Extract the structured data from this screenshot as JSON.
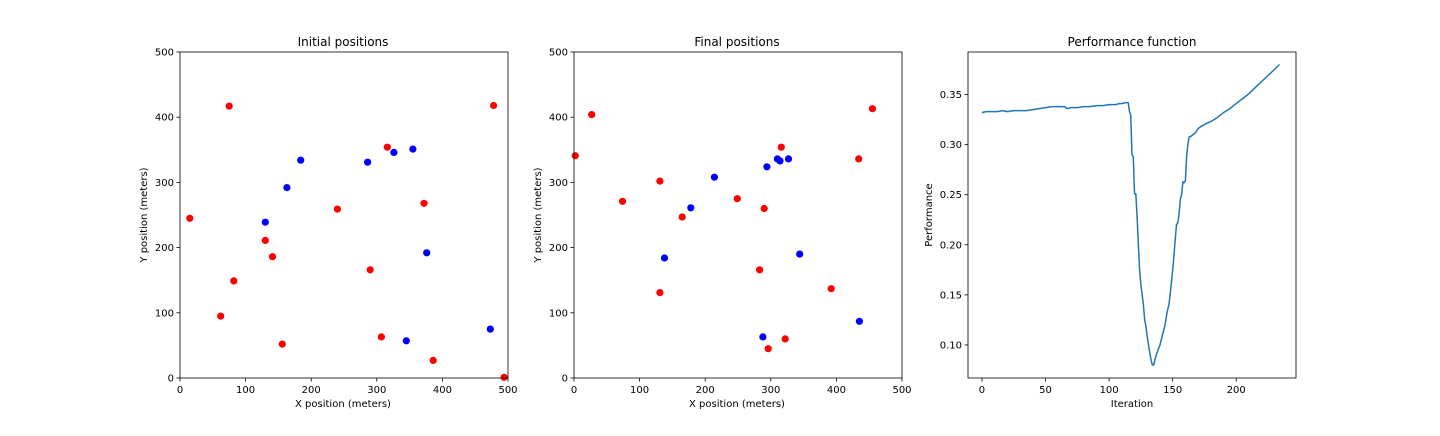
{
  "chart_data": [
    {
      "type": "scatter",
      "title": "Initial positions",
      "xlabel": "X position (meters)",
      "ylabel": "Y position (meters)",
      "xlim": [
        0,
        500
      ],
      "ylim": [
        0,
        500
      ],
      "xticks": [
        0,
        100,
        200,
        300,
        400,
        500
      ],
      "yticks": [
        0,
        100,
        200,
        300,
        400,
        500
      ],
      "grid": false,
      "colors": [
        "#ff0000",
        "#0000ff"
      ],
      "series": [
        {
          "color": "#ff0000",
          "points": [
            [
              15,
              245
            ],
            [
              75,
              417
            ],
            [
              82,
              149
            ],
            [
              62,
              95
            ],
            [
              130,
              211
            ],
            [
              141,
              186
            ],
            [
              156,
              52
            ],
            [
              240,
              259
            ],
            [
              290,
              166
            ],
            [
              307,
              63
            ],
            [
              316,
              354
            ],
            [
              372,
              268
            ],
            [
              386,
              27
            ],
            [
              478,
              418
            ],
            [
              494,
              1
            ]
          ]
        },
        {
          "color": "#0000ff",
          "points": [
            [
              130,
              239
            ],
            [
              163,
              292
            ],
            [
              184,
              334
            ],
            [
              286,
              331
            ],
            [
              326,
              346
            ],
            [
              355,
              351
            ],
            [
              376,
              192
            ],
            [
              345,
              57
            ],
            [
              473,
              75
            ]
          ]
        }
      ]
    },
    {
      "type": "scatter",
      "title": "Final positions",
      "xlabel": "X position (meters)",
      "ylabel": "Y position (meters)",
      "xlim": [
        0,
        500
      ],
      "ylim": [
        0,
        500
      ],
      "xticks": [
        0,
        100,
        200,
        300,
        400,
        500
      ],
      "yticks": [
        0,
        100,
        200,
        300,
        400,
        500
      ],
      "grid": false,
      "colors": [
        "#ff0000",
        "#0000ff"
      ],
      "series": [
        {
          "color": "#ff0000",
          "points": [
            [
              2,
              341
            ],
            [
              27,
              404
            ],
            [
              74,
              271
            ],
            [
              131,
              302
            ],
            [
              131,
              131
            ],
            [
              165,
              247
            ],
            [
              249,
              275
            ],
            [
              283,
              166
            ],
            [
              290,
              260
            ],
            [
              296,
              45
            ],
            [
              316,
              354
            ],
            [
              322,
              60
            ],
            [
              392,
              137
            ],
            [
              434,
              336
            ],
            [
              455,
              413
            ]
          ]
        },
        {
          "color": "#0000ff",
          "points": [
            [
              138,
              184
            ],
            [
              178,
              261
            ],
            [
              214,
              308
            ],
            [
              294,
              324
            ],
            [
              310,
              336
            ],
            [
              314,
              333
            ],
            [
              327,
              336
            ],
            [
              344,
              190
            ],
            [
              288,
              63
            ],
            [
              435,
              87
            ]
          ]
        }
      ]
    },
    {
      "type": "line",
      "title": "Performance function",
      "xlabel": "Iteration",
      "ylabel": "Performance",
      "xlim": [
        -11,
        247
      ],
      "ylim": [
        0.067,
        0.3925
      ],
      "xticks": [
        0,
        50,
        100,
        150,
        200
      ],
      "yticks": [
        0.1,
        0.15,
        0.2,
        0.25,
        0.3,
        0.35
      ],
      "grid": false,
      "color": "#1f77b4",
      "series": [
        {
          "x": [
            0,
            3,
            8,
            12,
            16,
            20,
            25,
            30,
            35,
            40,
            45,
            50,
            55,
            60,
            65,
            67,
            70,
            75,
            80,
            85,
            90,
            95,
            100,
            105,
            108,
            110,
            113,
            115,
            116,
            117,
            118,
            119,
            120,
            121,
            122,
            123,
            124,
            125,
            126,
            127,
            128,
            129,
            130,
            131,
            132,
            133,
            134,
            135,
            136,
            137,
            138,
            139,
            140,
            141,
            142,
            143,
            144,
            145,
            146,
            147,
            148,
            149,
            150,
            151,
            152,
            153,
            154,
            155,
            156,
            157,
            158,
            159,
            160,
            161,
            162,
            163,
            164,
            165,
            166,
            167,
            168,
            169,
            170,
            172,
            175,
            178,
            180,
            185,
            190,
            195,
            200,
            205,
            210,
            215,
            220,
            225,
            230,
            234
          ],
          "y": [
            0.332,
            0.333,
            0.333,
            0.333,
            0.334,
            0.333,
            0.334,
            0.334,
            0.334,
            0.335,
            0.336,
            0.337,
            0.338,
            0.338,
            0.338,
            0.336,
            0.337,
            0.337,
            0.338,
            0.338,
            0.339,
            0.339,
            0.34,
            0.34,
            0.341,
            0.341,
            0.342,
            0.342,
            0.333,
            0.33,
            0.29,
            0.288,
            0.251,
            0.251,
            0.228,
            0.2,
            0.175,
            0.16,
            0.15,
            0.14,
            0.125,
            0.118,
            0.108,
            0.1,
            0.092,
            0.085,
            0.08,
            0.08,
            0.085,
            0.09,
            0.093,
            0.097,
            0.1,
            0.105,
            0.11,
            0.115,
            0.12,
            0.128,
            0.135,
            0.14,
            0.15,
            0.162,
            0.175,
            0.19,
            0.205,
            0.22,
            0.222,
            0.23,
            0.245,
            0.25,
            0.263,
            0.262,
            0.264,
            0.29,
            0.3,
            0.308,
            0.308,
            0.309,
            0.31,
            0.311,
            0.312,
            0.314,
            0.316,
            0.318,
            0.32,
            0.322,
            0.323,
            0.327,
            0.332,
            0.336,
            0.341,
            0.346,
            0.351,
            0.357,
            0.363,
            0.369,
            0.375,
            0.38
          ]
        }
      ]
    }
  ]
}
